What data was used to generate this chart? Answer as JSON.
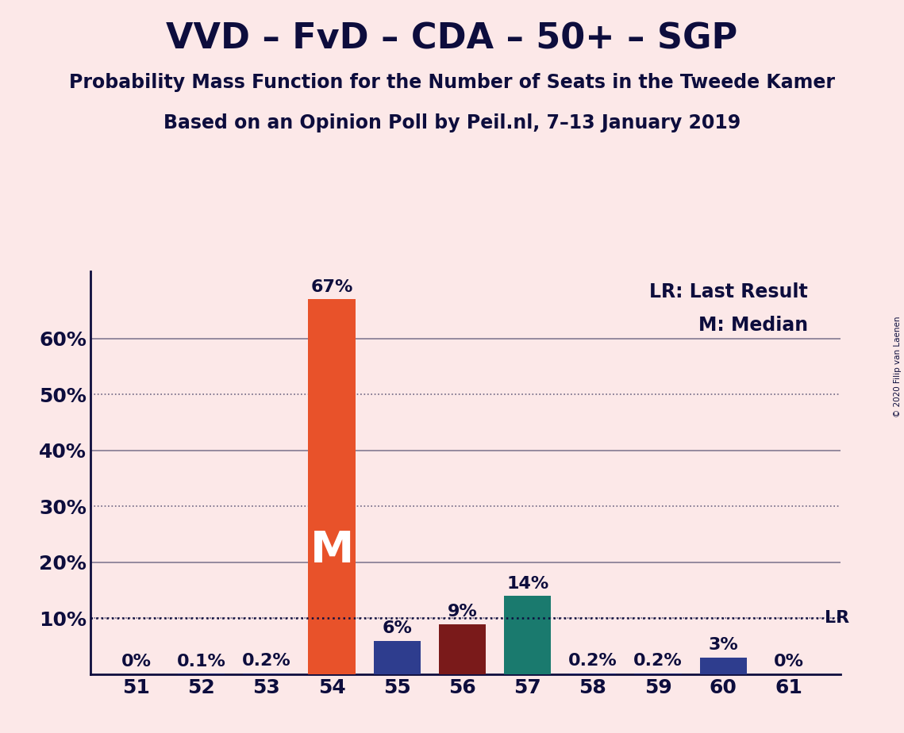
{
  "title": "VVD – FvD – CDA – 50+ – SGP",
  "subtitle1": "Probability Mass Function for the Number of Seats in the Tweede Kamer",
  "subtitle2": "Based on an Opinion Poll by Peil.nl, 7–13 January 2019",
  "copyright": "© 2020 Filip van Laenen",
  "legend_lr": "LR: Last Result",
  "legend_m": "M: Median",
  "seats": [
    51,
    52,
    53,
    54,
    55,
    56,
    57,
    58,
    59,
    60,
    61
  ],
  "values": [
    0.0,
    0.1,
    0.2,
    67.0,
    6.0,
    9.0,
    14.0,
    0.2,
    0.2,
    3.0,
    0.0
  ],
  "bar_colors": [
    "#1e2570",
    "#1e2570",
    "#1e2570",
    "#e8522a",
    "#2e3d8e",
    "#7a1a1a",
    "#1a7a6e",
    "#1e2570",
    "#1e2570",
    "#2e3d8e",
    "#1e2570"
  ],
  "median_bar_index": 3,
  "median_label": "M",
  "median_label_color": "#ffffff",
  "lr_value": 10.0,
  "lr_label": "LR",
  "background_color": "#fce8e8",
  "title_color": "#0d0d3d",
  "ylim_max": 72,
  "yticks": [
    0,
    10,
    20,
    30,
    40,
    50,
    60
  ],
  "ytick_labels": [
    "",
    "10%",
    "20%",
    "30%",
    "40%",
    "50%",
    "60%"
  ],
  "dotted_yticks": [
    10,
    30,
    50
  ],
  "solid_yticks": [
    20,
    40,
    60
  ],
  "title_fontsize": 32,
  "subtitle_fontsize": 17,
  "bar_label_fontsize": 16,
  "axis_tick_fontsize": 18,
  "legend_fontsize": 17,
  "bar_width": 0.72
}
